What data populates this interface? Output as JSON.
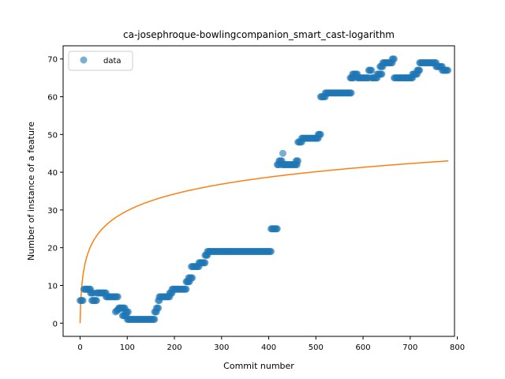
{
  "chart_data": {
    "type": "scatter",
    "title": "ca-josephroque-bowlingcompanion_smart_cast-logarithm",
    "xlabel": "Commit number",
    "ylabel": "Number of instance of a feature",
    "xlim": [
      -36,
      794
    ],
    "ylim": [
      -3.5,
      73.5
    ],
    "xticks": [
      0,
      100,
      200,
      300,
      400,
      500,
      600,
      700,
      800
    ],
    "yticks": [
      0,
      10,
      20,
      30,
      40,
      50,
      60,
      70
    ],
    "grid": false,
    "legend": {
      "position": "top-left",
      "entries": [
        "data"
      ]
    },
    "colors": {
      "data": "#1f77b4",
      "fit": "#ff7f0e"
    },
    "series": [
      {
        "name": "data",
        "kind": "scatter",
        "segments": [
          [
            0,
            6,
            6,
            6
          ],
          [
            8,
            12,
            9,
            9
          ],
          [
            14,
            22,
            9,
            9
          ],
          [
            22,
            28,
            8,
            8
          ],
          [
            25,
            35,
            6,
            6
          ],
          [
            35,
            55,
            8,
            8
          ],
          [
            55,
            80,
            7,
            7
          ],
          [
            75,
            85,
            3,
            4
          ],
          [
            82,
            95,
            4,
            4
          ],
          [
            90,
            98,
            2,
            2
          ],
          [
            96,
            102,
            3,
            3
          ],
          [
            100,
            158,
            1,
            1
          ],
          [
            158,
            162,
            3,
            3
          ],
          [
            162,
            166,
            4,
            4
          ],
          [
            166,
            168,
            6,
            6
          ],
          [
            168,
            190,
            7,
            7
          ],
          [
            190,
            195,
            8,
            8
          ],
          [
            195,
            225,
            9,
            9
          ],
          [
            225,
            232,
            11,
            11
          ],
          [
            230,
            238,
            12,
            12
          ],
          [
            236,
            252,
            15,
            15
          ],
          [
            252,
            265,
            16,
            16
          ],
          [
            265,
            270,
            18,
            18
          ],
          [
            270,
            405,
            19,
            19
          ],
          [
            405,
            418,
            25,
            25
          ],
          [
            418,
            422,
            42,
            42
          ],
          [
            422,
            428,
            43,
            43
          ],
          [
            428,
            460,
            42,
            42
          ],
          [
            458,
            462,
            43,
            43
          ],
          [
            462,
            470,
            48,
            48
          ],
          [
            470,
            505,
            49,
            49
          ],
          [
            505,
            510,
            50,
            50
          ],
          [
            510,
            520,
            60,
            60
          ],
          [
            520,
            575,
            61,
            61
          ],
          [
            573,
            580,
            65,
            65
          ],
          [
            578,
            588,
            66,
            66
          ],
          [
            588,
            612,
            65,
            65
          ],
          [
            612,
            618,
            67,
            67
          ],
          [
            618,
            630,
            65,
            65
          ],
          [
            630,
            640,
            66,
            66
          ],
          [
            636,
            642,
            68,
            68
          ],
          [
            642,
            662,
            69,
            69
          ],
          [
            662,
            666,
            70,
            70
          ],
          [
            666,
            690,
            65,
            65
          ],
          [
            690,
            705,
            65,
            65
          ],
          [
            705,
            715,
            66,
            66
          ],
          [
            715,
            720,
            67,
            67
          ],
          [
            720,
            755,
            69,
            69
          ],
          [
            755,
            768,
            68,
            68
          ],
          [
            768,
            780,
            67,
            67
          ]
        ],
        "outliers": [
          [
            430,
            45
          ]
        ]
      },
      {
        "name": "",
        "kind": "line",
        "function": "logarithm",
        "x_range": [
          0,
          781
        ],
        "y_range": [
          0,
          43
        ]
      }
    ]
  }
}
